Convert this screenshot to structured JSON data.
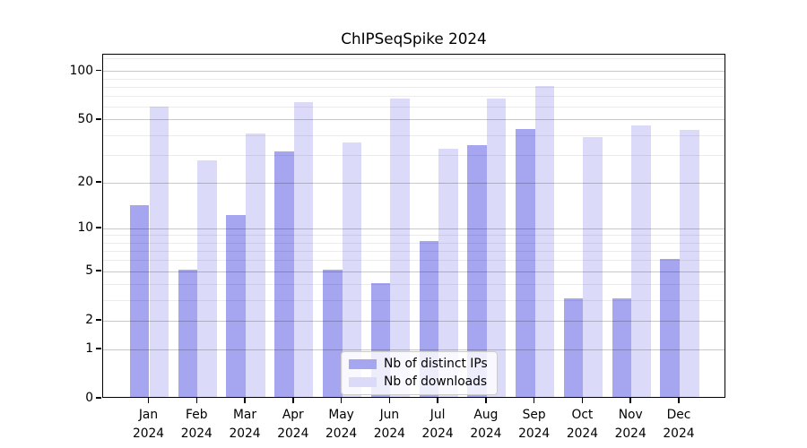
{
  "title": "ChIPSeqSpike 2024",
  "chart_data": {
    "type": "bar",
    "title": "ChIPSeqSpike 2024",
    "categories": [
      "Jan 2024",
      "Feb 2024",
      "Mar 2024",
      "Apr 2024",
      "May 2024",
      "Jun 2024",
      "Jul 2024",
      "Aug 2024",
      "Sep 2024",
      "Oct 2024",
      "Nov 2024",
      "Dec 2024"
    ],
    "series": [
      {
        "name": "Nb of distinct IPs",
        "color": "#a5a5f0",
        "values": [
          14,
          5,
          12,
          31,
          5,
          4,
          8,
          34,
          43,
          3,
          3,
          6
        ]
      },
      {
        "name": "Nb of downloads",
        "color": "#dbdbf9",
        "values": [
          59,
          27,
          40,
          63,
          35,
          66,
          32,
          66,
          79,
          38,
          45,
          42
        ]
      }
    ],
    "xlabel": "",
    "ylabel": "",
    "axis": {
      "yscale": "log1p",
      "ytick_values": [
        0,
        1,
        2,
        5,
        10,
        20,
        50,
        100
      ],
      "ytick_labels": [
        "0",
        "1",
        "2",
        "5",
        "10",
        "20",
        "50",
        "100"
      ],
      "minor_gridline_values": [
        3,
        4,
        6,
        7,
        8,
        9,
        30,
        40,
        60,
        70,
        80,
        90,
        120
      ],
      "ymax": 127,
      "grid": "on"
    },
    "legend_position": "lower center"
  }
}
